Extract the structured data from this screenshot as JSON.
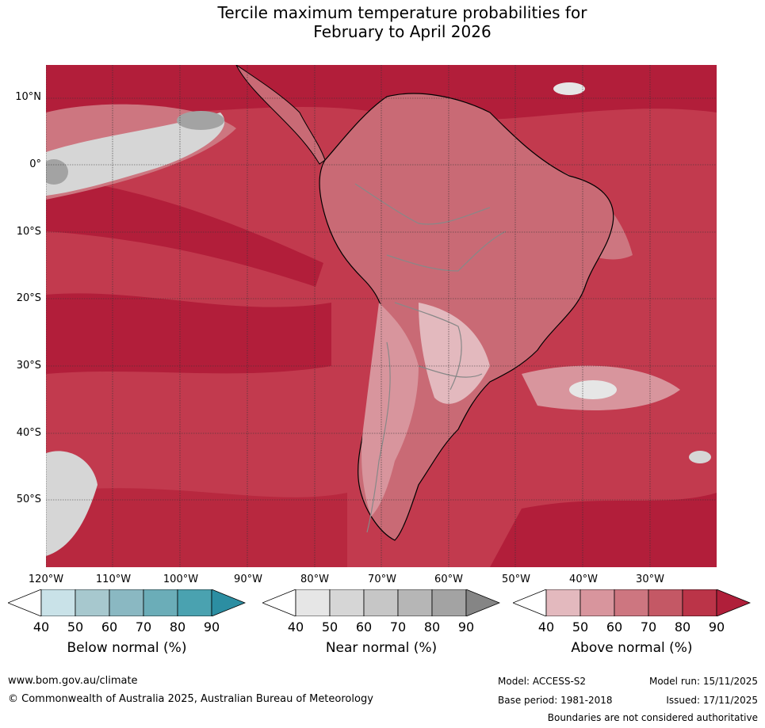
{
  "title_line1": "Tercile maximum temperature probabilities for",
  "title_line2": "February to April 2026",
  "latitudes": [
    "10°N",
    "0°",
    "10°S",
    "20°S",
    "30°S",
    "40°S",
    "50°S"
  ],
  "longitudes": [
    "120°W",
    "110°W",
    "100°W",
    "90°W",
    "80°W",
    "70°W",
    "60°W",
    "50°W",
    "40°W",
    "30°W"
  ],
  "colorbars": [
    {
      "label": "Below normal (%)",
      "ticks": [
        "40",
        "50",
        "60",
        "70",
        "80",
        "90"
      ],
      "colors": [
        "#ffffff",
        "#c9e2e8",
        "#a7c8ce",
        "#8ab8c2",
        "#6badb8",
        "#4aa2b0",
        "#2c8ea2"
      ]
    },
    {
      "label": "Near normal (%)",
      "ticks": [
        "40",
        "50",
        "60",
        "70",
        "80",
        "90"
      ],
      "colors": [
        "#ffffff",
        "#e6e6e6",
        "#d6d6d6",
        "#c6c6c6",
        "#b6b6b6",
        "#a3a3a3",
        "#858585"
      ]
    },
    {
      "label": "Above normal (%)",
      "ticks": [
        "40",
        "50",
        "60",
        "70",
        "80",
        "90"
      ],
      "colors": [
        "#ffffff",
        "#e3b9be",
        "#d8959d",
        "#cd7680",
        "#c45865",
        "#bb3448",
        "#b01f3a"
      ]
    }
  ],
  "footer": {
    "website": "www.bom.gov.au/climate",
    "copyright": "© Commonwealth of Australia 2025, Australian Bureau of Meteorology",
    "model": "Model: ACCESS-S2",
    "base_period": "Base period: 1981-2018",
    "model_run": "Model run: 15/11/2025",
    "issued": "Issued: 17/11/2025",
    "disclaimer": "Boundaries are not considered authoritative"
  }
}
